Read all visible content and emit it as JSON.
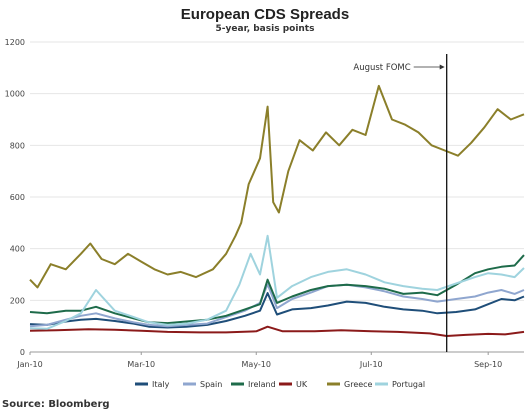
{
  "chart_data": {
    "type": "line",
    "title": "European CDS Spreads",
    "subtitle": "5-year, basis points",
    "xlabel": "",
    "ylabel": "",
    "ylim": [
      0,
      1200
    ],
    "yticks": [
      0,
      200,
      400,
      600,
      800,
      1000,
      1200
    ],
    "xlim": [
      "2010-01-01",
      "2010-09-20"
    ],
    "xticks": [
      {
        "date": "2010-01-01",
        "label": "Jan-10"
      },
      {
        "date": "2010-03-01",
        "label": "Mar-10"
      },
      {
        "date": "2010-05-01",
        "label": "May-10"
      },
      {
        "date": "2010-07-01",
        "label": "Jul-10"
      },
      {
        "date": "2010-09-01",
        "label": "Sep-10"
      }
    ],
    "grid": "horizontal",
    "legend_position": "bottom",
    "annotation": {
      "text": "August FOMC",
      "date": "2010-08-10"
    },
    "source": "Source: Bloomberg",
    "series": [
      {
        "name": "Italy",
        "color": "#1f4e79",
        "x": [
          "2010-01-01",
          "2010-01-10",
          "2010-01-20",
          "2010-01-28",
          "2010-02-05",
          "2010-02-15",
          "2010-02-25",
          "2010-03-05",
          "2010-03-15",
          "2010-03-25",
          "2010-04-05",
          "2010-04-15",
          "2010-04-25",
          "2010-05-03",
          "2010-05-07",
          "2010-05-12",
          "2010-05-20",
          "2010-05-30",
          "2010-06-08",
          "2010-06-18",
          "2010-06-28",
          "2010-07-08",
          "2010-07-18",
          "2010-07-28",
          "2010-08-05",
          "2010-08-15",
          "2010-08-25",
          "2010-09-01",
          "2010-09-08",
          "2010-09-15",
          "2010-09-20"
        ],
        "y": [
          108,
          105,
          118,
          125,
          128,
          120,
          110,
          98,
          95,
          98,
          105,
          120,
          140,
          160,
          228,
          145,
          165,
          170,
          180,
          195,
          190,
          175,
          165,
          160,
          150,
          155,
          165,
          185,
          205,
          200,
          215
        ]
      },
      {
        "name": "Spain",
        "color": "#8fa6cf",
        "x": [
          "2010-01-01",
          "2010-01-10",
          "2010-01-20",
          "2010-01-28",
          "2010-02-05",
          "2010-02-15",
          "2010-02-25",
          "2010-03-05",
          "2010-03-15",
          "2010-03-25",
          "2010-04-05",
          "2010-04-15",
          "2010-04-25",
          "2010-05-03",
          "2010-05-07",
          "2010-05-12",
          "2010-05-20",
          "2010-05-30",
          "2010-06-08",
          "2010-06-18",
          "2010-06-28",
          "2010-07-08",
          "2010-07-18",
          "2010-07-28",
          "2010-08-05",
          "2010-08-15",
          "2010-08-25",
          "2010-09-01",
          "2010-09-08",
          "2010-09-15",
          "2010-09-20"
        ],
        "y": [
          100,
          105,
          125,
          140,
          150,
          130,
          115,
          105,
          100,
          105,
          110,
          135,
          160,
          190,
          262,
          170,
          205,
          230,
          255,
          260,
          250,
          235,
          215,
          205,
          195,
          205,
          215,
          230,
          240,
          225,
          240
        ]
      },
      {
        "name": "Ireland",
        "color": "#1e6b4a",
        "x": [
          "2010-01-01",
          "2010-01-10",
          "2010-01-20",
          "2010-01-28",
          "2010-02-05",
          "2010-02-15",
          "2010-02-25",
          "2010-03-05",
          "2010-03-15",
          "2010-03-25",
          "2010-04-05",
          "2010-04-15",
          "2010-04-25",
          "2010-05-03",
          "2010-05-07",
          "2010-05-12",
          "2010-05-20",
          "2010-05-30",
          "2010-06-08",
          "2010-06-18",
          "2010-06-28",
          "2010-07-08",
          "2010-07-18",
          "2010-07-28",
          "2010-08-05",
          "2010-08-15",
          "2010-08-25",
          "2010-09-01",
          "2010-09-08",
          "2010-09-15",
          "2010-09-20"
        ],
        "y": [
          155,
          150,
          160,
          160,
          175,
          150,
          130,
          115,
          112,
          118,
          125,
          140,
          165,
          185,
          280,
          190,
          215,
          240,
          255,
          260,
          255,
          245,
          225,
          230,
          220,
          260,
          305,
          320,
          330,
          335,
          375
        ]
      },
      {
        "name": "UK",
        "color": "#8b1a1a",
        "x": [
          "2010-01-01",
          "2010-01-15",
          "2010-02-01",
          "2010-02-15",
          "2010-03-01",
          "2010-03-15",
          "2010-04-01",
          "2010-04-15",
          "2010-05-01",
          "2010-05-07",
          "2010-05-15",
          "2010-06-01",
          "2010-06-15",
          "2010-07-01",
          "2010-07-15",
          "2010-08-01",
          "2010-08-10",
          "2010-08-20",
          "2010-09-01",
          "2010-09-10",
          "2010-09-20"
        ],
        "y": [
          82,
          84,
          88,
          86,
          82,
          78,
          76,
          76,
          80,
          98,
          80,
          80,
          84,
          80,
          78,
          72,
          62,
          66,
          70,
          68,
          78
        ]
      },
      {
        "name": "Greece",
        "color": "#8b7f2a",
        "x": [
          "2010-01-01",
          "2010-01-05",
          "2010-01-12",
          "2010-01-20",
          "2010-01-28",
          "2010-02-02",
          "2010-02-08",
          "2010-02-15",
          "2010-02-22",
          "2010-03-01",
          "2010-03-08",
          "2010-03-15",
          "2010-03-22",
          "2010-03-30",
          "2010-04-08",
          "2010-04-15",
          "2010-04-20",
          "2010-04-23",
          "2010-04-27",
          "2010-04-30",
          "2010-05-03",
          "2010-05-07",
          "2010-05-10",
          "2010-05-13",
          "2010-05-18",
          "2010-05-24",
          "2010-05-31",
          "2010-06-07",
          "2010-06-14",
          "2010-06-21",
          "2010-06-28",
          "2010-07-05",
          "2010-07-12",
          "2010-07-19",
          "2010-07-26",
          "2010-08-02",
          "2010-08-09",
          "2010-08-16",
          "2010-08-23",
          "2010-08-30",
          "2010-09-06",
          "2010-09-13",
          "2010-09-20"
        ],
        "y": [
          280,
          250,
          340,
          320,
          380,
          420,
          360,
          340,
          380,
          350,
          320,
          300,
          310,
          290,
          320,
          380,
          450,
          500,
          650,
          700,
          750,
          950,
          580,
          540,
          700,
          820,
          780,
          850,
          800,
          860,
          840,
          1030,
          900,
          880,
          850,
          800,
          780,
          760,
          810,
          870,
          940,
          900,
          920
        ]
      },
      {
        "name": "Portugal",
        "color": "#9fd3de",
        "x": [
          "2010-01-01",
          "2010-01-10",
          "2010-01-20",
          "2010-01-28",
          "2010-02-05",
          "2010-02-15",
          "2010-02-25",
          "2010-03-05",
          "2010-03-15",
          "2010-03-25",
          "2010-04-05",
          "2010-04-15",
          "2010-04-22",
          "2010-04-28",
          "2010-05-03",
          "2010-05-07",
          "2010-05-12",
          "2010-05-20",
          "2010-05-30",
          "2010-06-08",
          "2010-06-18",
          "2010-06-28",
          "2010-07-08",
          "2010-07-18",
          "2010-07-28",
          "2010-08-05",
          "2010-08-15",
          "2010-08-25",
          "2010-09-01",
          "2010-09-08",
          "2010-09-15",
          "2010-09-20"
        ],
        "y": [
          92,
          90,
          120,
          150,
          240,
          160,
          135,
          115,
          105,
          110,
          125,
          160,
          260,
          380,
          300,
          450,
          210,
          255,
          290,
          310,
          320,
          300,
          270,
          255,
          245,
          240,
          265,
          290,
          305,
          300,
          290,
          325
        ]
      }
    ]
  }
}
